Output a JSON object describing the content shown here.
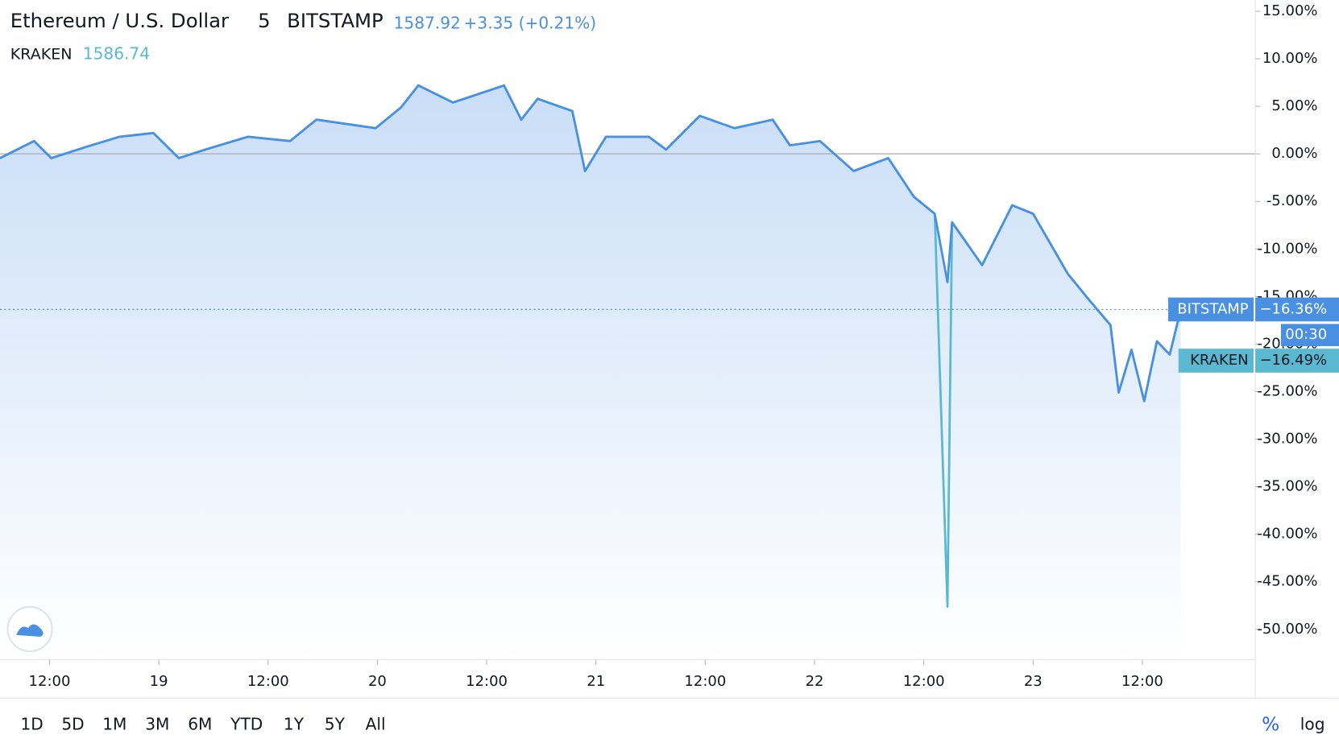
{
  "chart_data": {
    "type": "line",
    "title": "Ethereum / U.S. Dollar",
    "interval": "5",
    "exchange": "BITSTAMP",
    "price": 1587.92,
    "change": "+3.35 (+0.21%)",
    "countdown": "00:30",
    "x": [
      6.56,
      10.3,
      12.2,
      15.9,
      19.7,
      23.4,
      26.2,
      29.1,
      33.8,
      38.4,
      41.3,
      45,
      47.8,
      50.6,
      52.5,
      56.3,
      61.9,
      63.8,
      65.6,
      69.4,
      70.8,
      73.1,
      77.8,
      79.7,
      83.4,
      87.2,
      91.4,
      93.3,
      96.6,
      100.3,
      104.1,
      106.9,
      109.2,
      110.6,
      111.1,
      114.4,
      117.7,
      120,
      123.8,
      126.1,
      128.5,
      129.4,
      130.8,
      132.2,
      133.6,
      135,
      136.2
    ],
    "series": [
      {
        "name": "KRAKEN",
        "price": 1586.74,
        "color": "#5ab9d0",
        "last_label": "−16.49%",
        "values": [
          -0.45,
          1.35,
          -0.45,
          0.7,
          1.8,
          2.2,
          -0.45,
          0.45,
          1.8,
          1.35,
          3.6,
          3.1,
          2.7,
          4.9,
          7.2,
          5.4,
          7.2,
          3.6,
          5.8,
          4.5,
          -1.8,
          1.8,
          1.8,
          0.45,
          4,
          2.7,
          3.6,
          0.9,
          1.35,
          -1.8,
          -0.45,
          -4.5,
          -6.3,
          -47.6,
          -7.2,
          -11.7,
          -5.4,
          -6.3,
          -12.6,
          -15.3,
          -18,
          -25.1,
          -20.6,
          -26,
          -19.7,
          -21.1,
          -16.49
        ]
      },
      {
        "name": "BITSTAMP",
        "color": "#4a90e2",
        "last_label": "−16.36%",
        "values": [
          -0.45,
          1.35,
          -0.45,
          0.7,
          1.8,
          2.2,
          -0.45,
          0.45,
          1.8,
          1.35,
          3.6,
          3.1,
          2.7,
          4.9,
          7.2,
          5.4,
          7.2,
          3.6,
          5.8,
          4.5,
          -1.8,
          1.8,
          1.8,
          0.45,
          4,
          2.7,
          3.6,
          0.9,
          1.35,
          -1.8,
          -0.45,
          -4.5,
          -6.3,
          -13.5,
          -7.2,
          -11.7,
          -5.4,
          -6.3,
          -12.6,
          -15.3,
          -18,
          -25.1,
          -20.6,
          -26,
          -19.7,
          -21.1,
          -16.36
        ]
      }
    ],
    "xlim": [
      6.56,
      144.4
    ],
    "xticks": [
      {
        "value": 12,
        "label": "12:00"
      },
      {
        "value": 24,
        "label": "19"
      },
      {
        "value": 36,
        "label": "12:00"
      },
      {
        "value": 48,
        "label": "20"
      },
      {
        "value": 60,
        "label": "12:00"
      },
      {
        "value": 72,
        "label": "21"
      },
      {
        "value": 84,
        "label": "12:00"
      },
      {
        "value": 96,
        "label": "22"
      },
      {
        "value": 108,
        "label": "12:00"
      },
      {
        "value": 120,
        "label": "23"
      },
      {
        "value": 132,
        "label": "12:00"
      }
    ],
    "ylim": [
      -53.2,
      16.16
    ],
    "yticks": [
      {
        "value": 15,
        "label": "15.00%"
      },
      {
        "value": 10,
        "label": "10.00%"
      },
      {
        "value": 5,
        "label": "5.00%"
      },
      {
        "value": 0,
        "label": "0.00%"
      },
      {
        "value": -5,
        "label": "-5.00%"
      },
      {
        "value": -10,
        "label": "-10.00%"
      },
      {
        "value": -15,
        "label": "-15.00%"
      },
      {
        "value": -20,
        "label": "-20.00%"
      },
      {
        "value": -25,
        "label": "-25.00%"
      },
      {
        "value": -30,
        "label": "-30.00%"
      },
      {
        "value": -35,
        "label": "-35.00%"
      },
      {
        "value": -40,
        "label": "-40.00%"
      },
      {
        "value": -45,
        "label": "-45.00%"
      },
      {
        "value": -50,
        "label": "-50.00%"
      }
    ],
    "baseline": 0,
    "ranges": [
      "1D",
      "5D",
      "1M",
      "3M",
      "6M",
      "YTD",
      "1Y",
      "5Y",
      "All"
    ],
    "scale_buttons": [
      "%",
      "log"
    ]
  }
}
